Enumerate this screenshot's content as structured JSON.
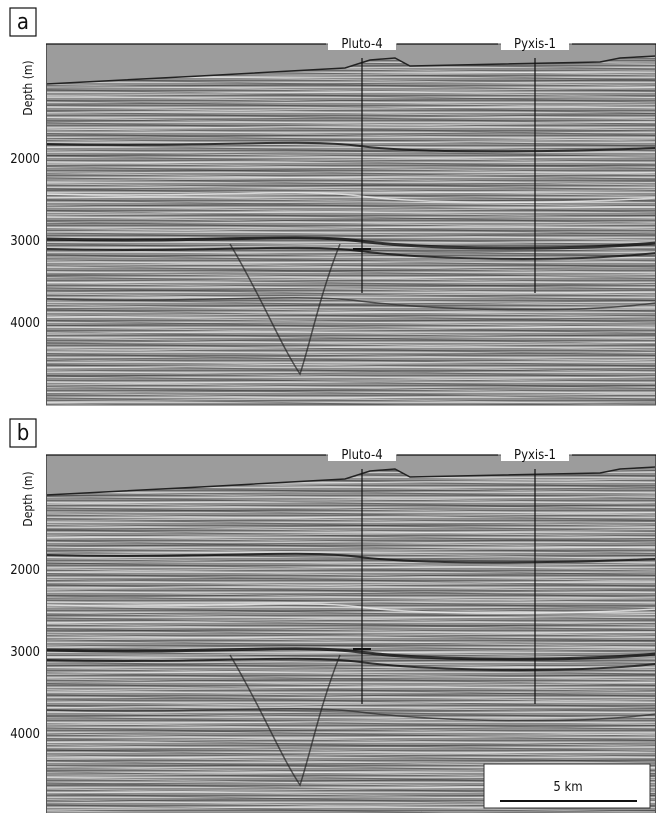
{
  "panels": [
    {
      "label": "a",
      "axis_label": "Depth (m)",
      "ticks": [
        2000,
        3000,
        4000
      ],
      "wells": [
        "Pluto-4",
        "Pyxis-1"
      ]
    },
    {
      "label": "b",
      "axis_label": "Depth (m)",
      "ticks": [
        2000,
        3000,
        4000
      ],
      "wells": [
        "Pluto-4",
        "Pyxis-1"
      ],
      "scale_bar": "5 km"
    }
  ]
}
